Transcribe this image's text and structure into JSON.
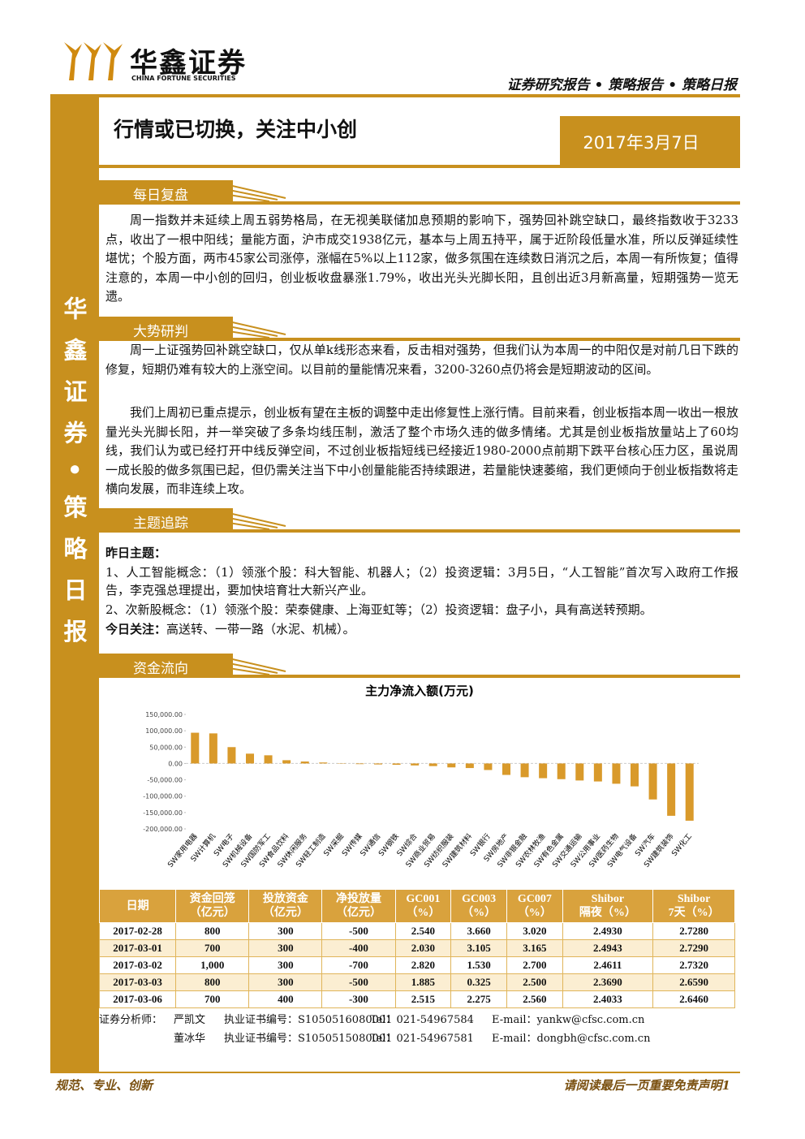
{
  "header": {
    "logo_cn": "华鑫证券",
    "logo_en": "CHINA FORTUNE SECURITIES",
    "report_type": "证券研究报告 • 策略报告 • 策略日报"
  },
  "sidebar": "华鑫证券•策略日报",
  "title": "行情或已切换，关注中小创",
  "date": "2017年3月7日",
  "sections": [
    {
      "heading": "每日复盘",
      "paragraphs": [
        "周一指数并未延续上周五弱势格局，在无视美联储加息预期的影响下，强势回补跳空缺口，最终指数收于3233点，收出了一根中阳线；量能方面，沪市成交1938亿元，基本与上周五持平，属于近阶段低量水准，所以反弹延续性堪忧；个股方面，两市45家公司涨停，涨幅在5%以上112家，做多氛围在连续数日消沉之后，本周一有所恢复；值得注意的，本周一中小创的回归，创业板收盘暴涨1.79%，收出光头光脚长阳，且创出近3月新高量，短期强势一览无遗。"
      ]
    },
    {
      "heading": "大势研判",
      "paragraphs": [
        "周一上证强势回补跳空缺口，仅从单k线形态来看，反击相对强势，但我们认为本周一的中阳仅是对前几日下跌的修复，短期仍难有较大的上涨空间。以目前的量能情况来看，3200-3260点仍将会是短期波动的区间。",
        "我们上周初已重点提示，创业板有望在主板的调整中走出修复性上涨行情。目前来看，创业板指本周一收出一根放量光头光脚长阳，并一举突破了多条均线压制，激活了整个市场久违的做多情绪。尤其是创业板指放量站上了60均线，我们认为或已经打开中线反弹空间，不过创业板指短线已经接近1980-2000点前期下跌平台核心压力区，虽说周一成长股的做多氛围已起，但仍需关注当下中小创量能能否持续跟进，若量能快速萎缩，我们更倾向于创业板指数将走横向发展，而非连续上攻。"
      ]
    },
    {
      "heading": "主题追踪",
      "yesterday_label": "昨日主题：",
      "items": [
        "1、人工智能概念：（1）领涨个股：科大智能、机器人；（2）投资逻辑：3月5日，“人工智能”首次写入政府工作报告，李克强总理提出，要加快培育壮大新兴产业。",
        "2、次新股概念：（1）领涨个股：荣泰健康、上海亚虹等；（2）投资逻辑：盘子小，具有高送转预期。"
      ],
      "today_label": "今日关注：",
      "today_text": "高送转、一带一路（水泥、机械）。"
    },
    {
      "heading": "资金流向"
    }
  ],
  "chart_data": {
    "type": "bar",
    "title": "主力净流入额(万元)",
    "color": "#d99a2b",
    "categories": [
      "SW家用电器",
      "SW计算机",
      "SW电子",
      "SW机械设备",
      "SW国防军工",
      "SW食品饮料",
      "SW休闲服务",
      "SW轻工制造",
      "SW采掘",
      "SW传媒",
      "SW通信",
      "SW钢铁",
      "SW综合",
      "SW商业贸易",
      "SW纺织服装",
      "SW建筑材料",
      "SW银行",
      "SW房地产",
      "SW非银金融",
      "SW农林牧渔",
      "SW有色金属",
      "SW交通运输",
      "SW公用事业",
      "SW医药生物",
      "SW电气设备",
      "SW汽车",
      "SW建筑装饰",
      "SW化工"
    ],
    "values": [
      94000,
      92000,
      50000,
      30000,
      25000,
      10000,
      6000,
      3000,
      1000,
      -2000,
      -3000,
      -4000,
      -6000,
      -8000,
      -12000,
      -14000,
      -20000,
      -35000,
      -42000,
      -45000,
      -48000,
      -52000,
      -55000,
      -62000,
      -70000,
      -110000,
      -160000,
      -175000
    ],
    "ylim": [
      -200000,
      150000
    ],
    "yticks": [
      {
        "value": 150000,
        "label": "150,000.00"
      },
      {
        "value": 100000,
        "label": "100,000.00"
      },
      {
        "value": 50000,
        "label": "50,000.00"
      },
      {
        "value": 0,
        "label": "0.00"
      },
      {
        "value": -50000,
        "label": "-50,000.00"
      },
      {
        "value": -100000,
        "label": "-100,000.00"
      },
      {
        "value": -150000,
        "label": "-150,000.00"
      },
      {
        "value": -200000,
        "label": "-200,000.00"
      }
    ]
  },
  "table": {
    "header": [
      [
        "日期"
      ],
      [
        "资金回笼",
        "（亿元）"
      ],
      [
        "投放资金",
        "（亿元）"
      ],
      [
        "净投放量",
        "（亿元）"
      ],
      [
        "GC001",
        "（%）"
      ],
      [
        "GC003",
        "（%）"
      ],
      [
        "GC007",
        "（%）"
      ],
      [
        "Shibor",
        "隔夜（%）"
      ],
      [
        "Shibor",
        "7天（%）"
      ]
    ],
    "rows": [
      [
        "2017-02-28",
        "800",
        "300",
        "-500",
        "2.540",
        "3.660",
        "3.020",
        "2.4930",
        "2.7280"
      ],
      [
        "2017-03-01",
        "700",
        "300",
        "-400",
        "2.030",
        "3.105",
        "3.165",
        "2.4943",
        "2.7290"
      ],
      [
        "2017-03-02",
        "1,000",
        "300",
        "-700",
        "2.820",
        "1.530",
        "2.700",
        "2.4611",
        "2.7320"
      ],
      [
        "2017-03-03",
        "800",
        "300",
        "-500",
        "1.885",
        "0.325",
        "2.500",
        "2.3690",
        "2.6590"
      ],
      [
        "2017-03-06",
        "700",
        "400",
        "-300",
        "2.515",
        "2.275",
        "2.560",
        "2.4033",
        "2.6460"
      ]
    ]
  },
  "analysts": {
    "role": "证券分析师：",
    "people": [
      {
        "name": "严凯文",
        "cert": "执业证书编号：S1050516080001",
        "tel": "Tel：021-54967584",
        "email": "E-mail：yankw@cfsc.com.cn"
      },
      {
        "name": "董冰华",
        "cert": "执业证书编号：S1050515080001",
        "tel": "Tel：021-54967581",
        "email": "E-mail：dongbh@cfsc.com.cn"
      }
    ]
  },
  "footer": {
    "left": "规范、专业、创新",
    "right": "请阅读最后一页重要免责声明1"
  }
}
